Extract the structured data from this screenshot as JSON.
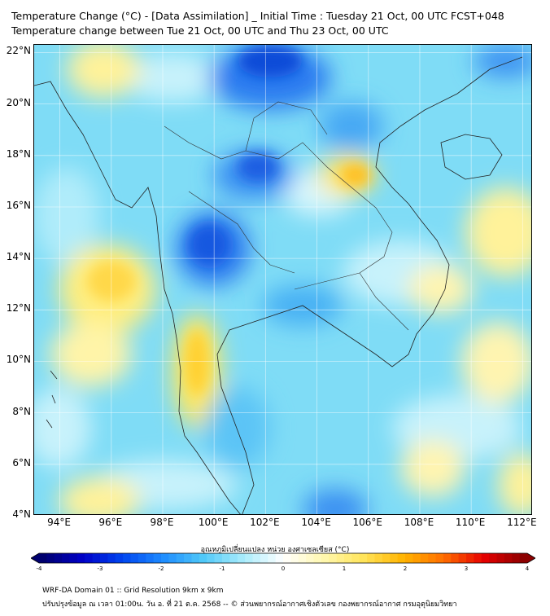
{
  "title_line1": "Temperature Change (°C) - [Data Assimilation] _ Initial Time : Tuesday 21 Oct, 00 UTC FCST+048",
  "title_line2": "Temperature change between Tue 21 Oct, 00 UTC and Thu 23 Oct, 00 UTC",
  "map": {
    "lat_labels": [
      "22°N",
      "20°N",
      "18°N",
      "16°N",
      "14°N",
      "12°N",
      "10°N",
      "8°N",
      "6°N",
      "4°N"
    ],
    "lon_labels": [
      "94°E",
      "96°E",
      "98°E",
      "100°E",
      "102°E",
      "104°E",
      "106°E",
      "108°E",
      "110°E",
      "112°E"
    ],
    "lat_range": [
      4,
      22.3
    ],
    "lon_range": [
      93,
      112.4
    ],
    "gridlines": true,
    "background_color": "#7fdcf6"
  },
  "colorbar": {
    "title": "อุณหภูมิเปลี่ยนแปลง หน่วย องศาเซลเซียส (°C)",
    "ticks": [
      "-4",
      "-3",
      "-2",
      "-1",
      "0",
      "1",
      "2",
      "3",
      "4"
    ],
    "min": -4,
    "max": 4,
    "colors": [
      "#00006e",
      "#0000c8",
      "#0046f0",
      "#1e8cff",
      "#50c8f8",
      "#a8ecfc",
      "#ffffff",
      "#fff8b0",
      "#ffe45a",
      "#ffb400",
      "#ff6e00",
      "#e60000",
      "#8c0000"
    ]
  },
  "footer_line1": "WRF-DA Domain 01 :: Grid Resolution 9km x 9km",
  "footer_line2": "ปรับปรุงข้อมูล ณ เวลา 01:00น. วัน อ. ที่ 21 ต.ค. 2568 -- © ส่วนพยากรณ์อากาศเชิงตัวเลข กองพยากรณ์อากาศ กรมอุตุนิยมวิทยา"
}
